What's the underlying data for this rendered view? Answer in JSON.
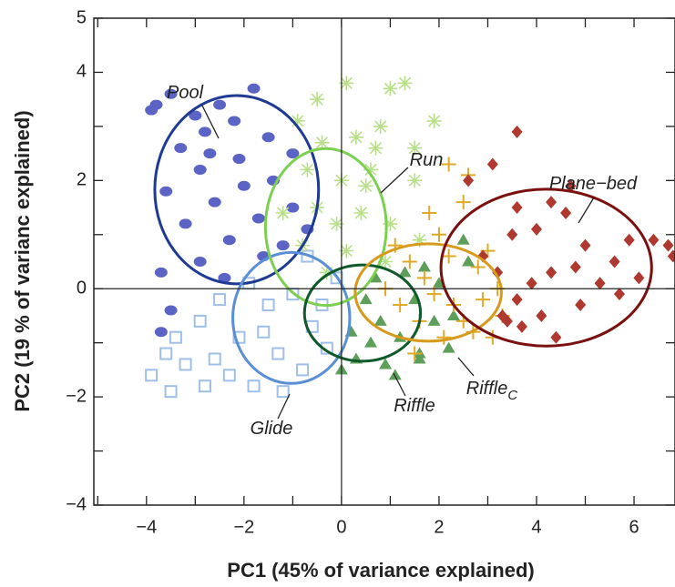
{
  "chart_data": {
    "type": "scatter",
    "xlabel": "PC1 (45% of variance explained)",
    "ylabel": "PC2 (19 % of varianc explained)",
    "xlim": [
      -5.08,
      6.84
    ],
    "ylim": [
      -4,
      5
    ],
    "xticks": [
      {
        "value": -4,
        "label": "−4"
      },
      {
        "value": -2,
        "label": "−2"
      },
      0,
      2,
      4,
      6
    ],
    "yticks": [
      {
        "value": -4,
        "label": "−4"
      },
      {
        "value": -2,
        "label": "−2"
      },
      0,
      2,
      4,
      5
    ],
    "minor_xticks": [
      -5,
      -3,
      -1,
      1,
      3,
      5
    ],
    "minor_yticks": [
      -3,
      -1,
      1,
      3
    ],
    "series": [
      {
        "name": "Pool",
        "marker": "circle",
        "color": "#5b63c4",
        "ellipse_color": "#1f3a93",
        "ellipse": {
          "cx": -2.15,
          "cy": 1.83,
          "rx": 1.68,
          "ry": 1.74
        },
        "x": [
          -3.8,
          -3.5,
          -3.3,
          -3.0,
          -2.8,
          -2.5,
          -2.2,
          -1.8,
          -1.5,
          -1.0,
          -3.6,
          -3.2,
          -2.9,
          -2.6,
          -2.3,
          -2.0,
          -1.7,
          -1.4,
          -1.0,
          -0.7,
          -3.7,
          -3.5,
          -3.7,
          -2.9,
          -2.4,
          -1.6,
          -1.2,
          -3.9,
          -2.7,
          -2.1
        ],
        "y": [
          3.4,
          3.6,
          2.6,
          3.2,
          2.9,
          3.4,
          3.1,
          3.7,
          2.8,
          2.5,
          1.8,
          1.2,
          2.2,
          1.6,
          0.9,
          1.9,
          1.3,
          2.0,
          1.5,
          1.1,
          0.3,
          -0.4,
          -0.8,
          0.5,
          0.2,
          0.6,
          0.8,
          3.3,
          2.5,
          2.4
        ]
      },
      {
        "name": "Glide",
        "marker": "square",
        "color": "#9fbfe8",
        "ellipse_color": "#5a8fd6",
        "ellipse": {
          "cx": -1.03,
          "cy": -0.54,
          "rx": 1.2,
          "ry": 1.21
        },
        "x": [
          -3.6,
          -3.4,
          -3.2,
          -2.9,
          -2.6,
          -3.5,
          -2.3,
          -2.1,
          -1.8,
          -1.5,
          -1.3,
          -1.0,
          -0.8,
          -0.6,
          -0.3,
          -0.1,
          -1.9,
          -0.7,
          -2.5,
          -1.2,
          -2.8,
          -1.6,
          -0.4,
          -3.9
        ],
        "y": [
          -1.2,
          -0.9,
          -1.4,
          -0.6,
          -1.3,
          -1.9,
          -1.6,
          -0.9,
          -1.8,
          -0.3,
          -1.2,
          -0.1,
          -1.5,
          -0.7,
          -1.1,
          0.2,
          0.1,
          0.6,
          -0.2,
          -1.9,
          -1.8,
          -0.8,
          -0.3,
          -1.6
        ]
      },
      {
        "name": "Run",
        "marker": "asterisk",
        "color": "#b8e08a",
        "ellipse_color": "#7dcf52",
        "ellipse": {
          "cx": -0.32,
          "cy": 1.14,
          "rx": 1.24,
          "ry": 1.45
        },
        "x": [
          1.3,
          1.0,
          0.1,
          -0.5,
          -0.9,
          -0.4,
          0.3,
          0.8,
          1.5,
          1.5,
          0.6,
          0.0,
          -0.7,
          -1.2,
          -0.5,
          0.4,
          1.0,
          -0.8,
          0.1,
          0.9,
          -0.3,
          1.6,
          0.5,
          -0.1,
          0.7,
          1.9
        ],
        "y": [
          3.8,
          3.7,
          3.8,
          3.5,
          3.1,
          2.7,
          2.8,
          3.0,
          2.6,
          2.0,
          2.2,
          2.0,
          2.2,
          1.4,
          1.5,
          1.4,
          1.2,
          0.8,
          0.7,
          0.5,
          0.3,
          0.9,
          1.9,
          1.2,
          2.6,
          3.1
        ]
      },
      {
        "name": "Riffle",
        "marker": "triangle",
        "color": "#5c9e5a",
        "ellipse_color": "#0f5a2a",
        "ellipse": {
          "cx": 0.43,
          "cy": -0.45,
          "rx": 1.19,
          "ry": 0.89
        },
        "x": [
          0.0,
          0.3,
          0.6,
          0.9,
          1.2,
          1.6,
          1.9,
          2.3,
          2.6,
          2.5,
          1.3,
          1.7,
          0.5,
          0.8,
          1.1,
          1.6,
          0.2,
          2.2,
          1.5,
          0.7,
          2.0
        ],
        "y": [
          -1.5,
          -1.3,
          -1.0,
          -1.4,
          -0.9,
          -1.2,
          -0.6,
          -0.5,
          0.5,
          0.9,
          0.3,
          0.4,
          -0.2,
          -0.6,
          -1.6,
          -1.3,
          -0.8,
          -1.1,
          -0.2,
          0.2,
          0.1
        ]
      },
      {
        "name": "Riffle",
        "subscript": "C",
        "marker": "plus",
        "color": "#e0a928",
        "ellipse_color": "#d89a1c",
        "ellipse": {
          "cx": 1.78,
          "cy": -0.07,
          "rx": 1.5,
          "ry": 0.9
        },
        "x": [
          2.2,
          2.5,
          1.8,
          2.0,
          1.4,
          1.7,
          2.2,
          2.8,
          3.2,
          3.3,
          2.9,
          2.5,
          2.1,
          1.6,
          1.2,
          0.9,
          1.5,
          2.7,
          3.0,
          1.9,
          2.3,
          3.1,
          1.1,
          2.6
        ],
        "y": [
          2.3,
          1.6,
          1.4,
          1.0,
          0.5,
          0.2,
          0.6,
          0.4,
          0.0,
          -0.5,
          -0.2,
          -0.6,
          -0.9,
          -0.6,
          -0.3,
          0.0,
          -1.2,
          -0.8,
          0.7,
          -0.1,
          -0.3,
          -0.9,
          0.8,
          2.1
        ]
      },
      {
        "name": "Plane−bed",
        "marker": "diamond",
        "color": "#b0392f",
        "ellipse_color": "#7a1010",
        "ellipse": {
          "cx": 4.2,
          "cy": 0.39,
          "rx": 2.16,
          "ry": 1.45
        },
        "x": [
          3.6,
          3.1,
          2.6,
          4.3,
          3.6,
          4.6,
          5.0,
          5.6,
          6.1,
          6.4,
          6.7,
          5.9,
          4.8,
          4.3,
          3.9,
          3.6,
          3.3,
          3.7,
          4.4,
          4.9,
          5.3,
          3.2,
          2.9,
          4.1,
          5.7,
          3.5,
          4.7,
          6.8,
          3.4,
          4.0
        ],
        "y": [
          2.9,
          2.3,
          2.0,
          1.6,
          1.5,
          1.4,
          0.8,
          0.5,
          0.2,
          0.9,
          0.8,
          0.9,
          0.4,
          0.3,
          0.1,
          -0.2,
          -0.5,
          -0.7,
          -0.9,
          -0.3,
          0.1,
          0.3,
          0.6,
          -0.5,
          -0.1,
          1.0,
          1.9,
          0.6,
          -0.6,
          1.1
        ]
      }
    ]
  }
}
